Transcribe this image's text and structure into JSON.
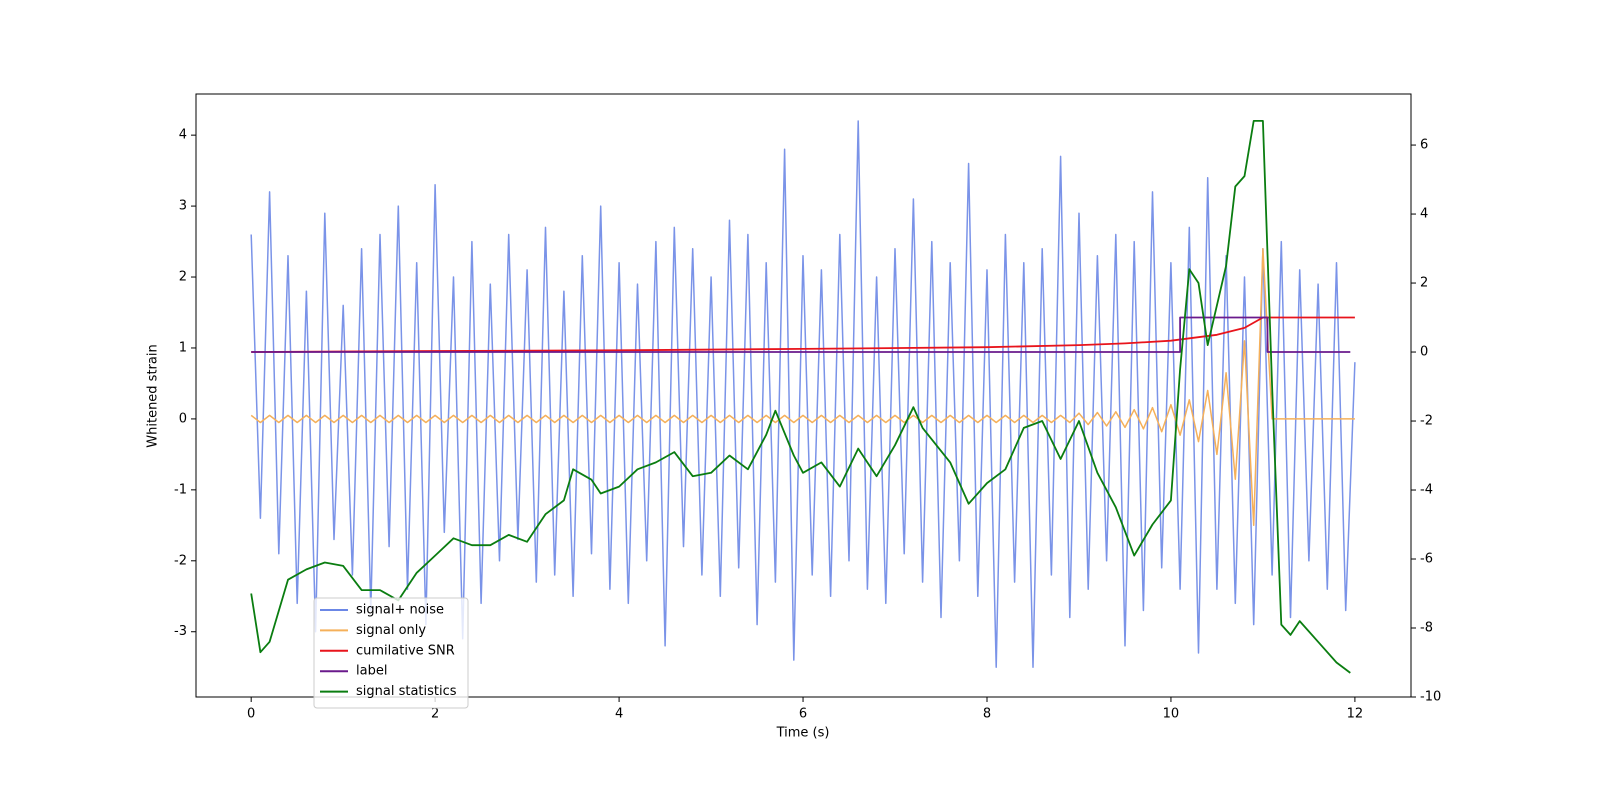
{
  "chart_data": {
    "type": "line",
    "xlabel": "Time (s)",
    "ylabel": "Whitened strain",
    "xlim": [
      -0.6,
      12.61
    ],
    "ylim": [
      -3.92,
      4.58
    ],
    "y2lim": [
      -10.0,
      7.48
    ],
    "xticks": [
      0,
      2,
      4,
      6,
      8,
      10,
      12
    ],
    "yticks": [
      -3,
      -2,
      -1,
      0,
      1,
      2,
      3,
      4
    ],
    "y2ticks": [
      -10,
      -8,
      -6,
      -4,
      -2,
      0,
      2,
      4,
      6
    ],
    "legend": "lower left",
    "x": [
      0,
      0.1,
      0.2,
      0.3,
      0.4,
      0.5,
      0.6,
      0.7,
      0.8,
      0.9,
      1,
      1.1,
      1.2,
      1.3,
      1.4,
      1.5,
      1.6,
      1.7,
      1.8,
      1.9,
      2,
      2.1,
      2.2,
      2.3,
      2.4,
      2.5,
      2.6,
      2.7,
      2.8,
      2.9,
      3,
      3.1,
      3.2,
      3.3,
      3.4,
      3.5,
      3.6,
      3.7,
      3.8,
      3.9,
      4,
      4.1,
      4.2,
      4.3,
      4.4,
      4.5,
      4.6,
      4.7,
      4.8,
      4.9,
      5,
      5.1,
      5.2,
      5.3,
      5.4,
      5.5,
      5.6,
      5.7,
      5.8,
      5.9,
      6,
      6.1,
      6.2,
      6.3,
      6.4,
      6.5,
      6.6,
      6.7,
      6.8,
      6.9,
      7,
      7.1,
      7.2,
      7.3,
      7.4,
      7.5,
      7.6,
      7.7,
      7.8,
      7.9,
      8,
      8.1,
      8.2,
      8.3,
      8.4,
      8.5,
      8.6,
      8.7,
      8.8,
      8.9,
      9,
      9.1,
      9.2,
      9.3,
      9.4,
      9.5,
      9.6,
      9.7,
      9.8,
      9.9,
      10,
      10.1,
      10.2,
      10.3,
      10.4,
      10.5,
      10.6,
      10.7,
      10.8,
      10.9,
      11,
      11.1,
      11.2,
      11.3,
      11.4,
      11.5,
      11.6,
      11.7,
      11.8,
      11.9,
      12
    ],
    "series": [
      {
        "name": "signal+ noise",
        "color": "#6b87e6",
        "values": [
          2.6,
          -1.4,
          3.2,
          -1.9,
          2.3,
          -2.6,
          1.8,
          -3.0,
          2.9,
          -1.7,
          1.6,
          -2.2,
          2.4,
          -2.7,
          2.6,
          -1.8,
          3.0,
          -2.4,
          2.2,
          -2.9,
          3.3,
          -1.6,
          2.0,
          -3.1,
          2.5,
          -2.6,
          1.9,
          -2.0,
          2.6,
          -1.7,
          2.1,
          -2.3,
          2.7,
          -2.2,
          1.8,
          -2.5,
          2.3,
          -1.9,
          3.0,
          -2.4,
          2.2,
          -2.6,
          1.9,
          -2.0,
          2.5,
          -3.2,
          2.7,
          -1.8,
          2.4,
          -2.2,
          2.0,
          -2.5,
          2.8,
          -2.1,
          2.6,
          -2.9,
          2.2,
          -2.3,
          3.8,
          -3.4,
          2.3,
          -2.2,
          2.1,
          -2.5,
          2.6,
          -2.0,
          4.2,
          -2.4,
          2.0,
          -2.6,
          2.4,
          -1.9,
          3.1,
          -2.3,
          2.5,
          -2.8,
          2.2,
          -2.0,
          3.6,
          -2.5,
          2.1,
          -3.5,
          2.6,
          -2.3,
          2.2,
          -3.5,
          2.4,
          -2.2,
          3.7,
          -2.8,
          2.9,
          -2.4,
          2.3,
          -2.0,
          2.6,
          -3.2,
          2.5,
          -2.7,
          3.2,
          -2.1,
          2.2,
          -2.4,
          2.7,
          -3.3,
          3.4,
          -2.4,
          2.3,
          -2.6,
          2.0,
          -2.9,
          2.4,
          -2.2,
          2.5,
          -2.8,
          2.1,
          -2.0,
          1.9,
          -2.4,
          2.2,
          -2.7,
          0.8
        ]
      },
      {
        "name": "signal only",
        "color": "#f5b05a",
        "values": [
          0.05,
          -0.05,
          0.05,
          -0.05,
          0.05,
          -0.05,
          0.05,
          -0.05,
          0.05,
          -0.05,
          0.05,
          -0.05,
          0.05,
          -0.05,
          0.05,
          -0.05,
          0.05,
          -0.05,
          0.05,
          -0.05,
          0.05,
          -0.05,
          0.05,
          -0.05,
          0.05,
          -0.05,
          0.05,
          -0.05,
          0.05,
          -0.05,
          0.05,
          -0.05,
          0.05,
          -0.05,
          0.05,
          -0.05,
          0.05,
          -0.05,
          0.05,
          -0.05,
          0.05,
          -0.05,
          0.05,
          -0.05,
          0.05,
          -0.05,
          0.05,
          -0.05,
          0.05,
          -0.05,
          0.05,
          -0.05,
          0.05,
          -0.05,
          0.05,
          -0.05,
          0.05,
          -0.05,
          0.05,
          -0.05,
          0.05,
          -0.05,
          0.05,
          -0.05,
          0.05,
          -0.05,
          0.05,
          -0.05,
          0.05,
          -0.05,
          0.05,
          -0.05,
          0.05,
          -0.05,
          0.05,
          -0.05,
          0.05,
          -0.05,
          0.05,
          -0.05,
          0.05,
          -0.05,
          0.05,
          -0.05,
          0.05,
          -0.05,
          0.05,
          -0.05,
          0.05,
          -0.05,
          0.08,
          -0.08,
          0.09,
          -0.1,
          0.1,
          -0.12,
          0.13,
          -0.14,
          0.16,
          -0.18,
          0.2,
          -0.23,
          0.27,
          -0.32,
          0.4,
          -0.5,
          0.65,
          -0.85,
          1.1,
          -1.5,
          2.4,
          0,
          0,
          0,
          0,
          0,
          0,
          0,
          0,
          0,
          0
        ]
      },
      {
        "name": "cumilative SNR",
        "color": "#e8141c",
        "axis": "y2",
        "x": [
          0,
          2,
          4,
          6,
          8,
          9,
          9.5,
          10,
          10.5,
          10.8,
          11,
          12
        ],
        "values": [
          0,
          0.03,
          0.05,
          0.09,
          0.14,
          0.2,
          0.25,
          0.33,
          0.5,
          0.7,
          1.0,
          1.0
        ]
      },
      {
        "name": "label",
        "color": "#6a1a8c",
        "axis": "y2",
        "x": [
          0,
          10.1,
          10.1,
          11.05,
          11.05,
          11.95
        ],
        "values": [
          0,
          0,
          1,
          1,
          0,
          0
        ]
      },
      {
        "name": "signal statistics",
        "color": "#0a7d10",
        "axis": "y2",
        "x": [
          0,
          0.1,
          0.2,
          0.4,
          0.6,
          0.8,
          1.0,
          1.2,
          1.4,
          1.6,
          1.8,
          2.0,
          2.2,
          2.4,
          2.6,
          2.8,
          3.0,
          3.2,
          3.4,
          3.5,
          3.7,
          3.8,
          4.0,
          4.2,
          4.4,
          4.6,
          4.8,
          5.0,
          5.2,
          5.4,
          5.6,
          5.7,
          5.9,
          6.0,
          6.2,
          6.4,
          6.6,
          6.8,
          7.0,
          7.2,
          7.3,
          7.6,
          7.8,
          8.0,
          8.2,
          8.4,
          8.6,
          8.8,
          9.0,
          9.2,
          9.4,
          9.6,
          9.8,
          10.0,
          10.1,
          10.2,
          10.3,
          10.4,
          10.6,
          10.7,
          10.8,
          10.9,
          11.0,
          11.1,
          11.2,
          11.3,
          11.4,
          11.6,
          11.8,
          11.95
        ],
        "values": [
          -7.0,
          -8.7,
          -8.4,
          -6.6,
          -6.3,
          -6.1,
          -6.2,
          -6.9,
          -6.9,
          -7.2,
          -6.4,
          -5.9,
          -5.4,
          -5.6,
          -5.6,
          -5.3,
          -5.5,
          -4.7,
          -4.3,
          -3.4,
          -3.7,
          -4.1,
          -3.9,
          -3.4,
          -3.2,
          -2.9,
          -3.6,
          -3.5,
          -3.0,
          -3.4,
          -2.4,
          -1.7,
          -3.0,
          -3.5,
          -3.2,
          -3.9,
          -2.8,
          -3.6,
          -2.7,
          -1.6,
          -2.2,
          -3.2,
          -4.4,
          -3.8,
          -3.4,
          -2.2,
          -2.0,
          -3.1,
          -2.0,
          -3.5,
          -4.5,
          -5.9,
          -5.0,
          -4.3,
          -0.5,
          2.4,
          2.0,
          0.2,
          2.5,
          4.8,
          5.1,
          6.7,
          6.7,
          -1.0,
          -7.9,
          -8.2,
          -7.8,
          -8.4,
          -9.0,
          -9.3
        ]
      }
    ]
  }
}
